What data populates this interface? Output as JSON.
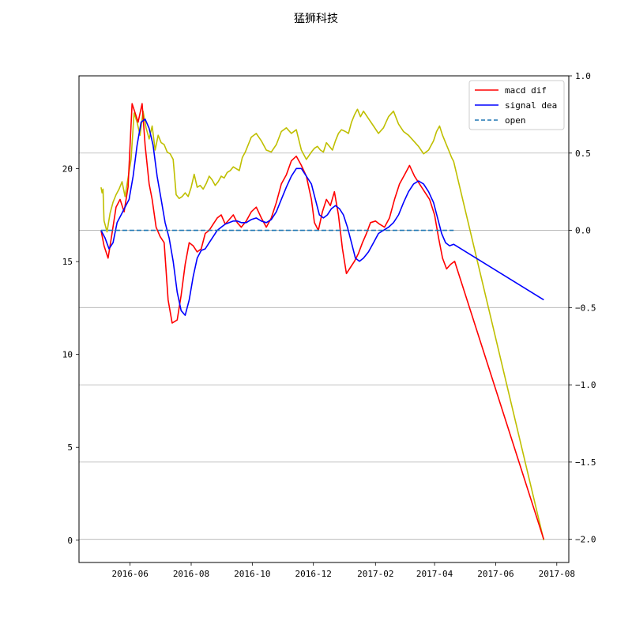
{
  "chart_data": {
    "type": "line",
    "title": "猛狮科技",
    "xlabel": "",
    "ylabel": "",
    "x_range": [
      "2016-04-11",
      "2017-08-13"
    ],
    "x_ticks": [
      {
        "date": "2016-06-01",
        "label": "2016-06"
      },
      {
        "date": "2016-08-01",
        "label": "2016-08"
      },
      {
        "date": "2016-10-01",
        "label": "2016-10"
      },
      {
        "date": "2016-12-01",
        "label": "2016-12"
      },
      {
        "date": "2017-02-01",
        "label": "2017-02"
      },
      {
        "date": "2017-04-01",
        "label": "2017-04"
      },
      {
        "date": "2017-06-01",
        "label": "2017-06"
      },
      {
        "date": "2017-08-01",
        "label": "2017-08"
      }
    ],
    "y_left": {
      "lim": [
        -1.2,
        25.0
      ],
      "ticks": [
        0,
        5,
        10,
        15,
        20
      ],
      "tick_labels": [
        "0",
        "5",
        "10",
        "15",
        "20"
      ]
    },
    "y_right": {
      "lim": [
        -2.15,
        1.0
      ],
      "ticks": [
        1.0,
        0.5,
        0.0,
        -0.5,
        -1.0,
        -1.5,
        -2.0
      ],
      "tick_labels": [
        "1.0",
        "0.5",
        "0.0",
        "−0.5",
        "−1.0",
        "−1.5",
        "−2.0"
      ]
    },
    "grid": "horizontal lines on right-axis ticks",
    "legend": {
      "placement": "top-right"
    },
    "series": [
      {
        "name": "",
        "axis": "left",
        "color": "#bfbf00",
        "dash": "solid",
        "x": [
          "2016-05-03",
          "2016-05-04",
          "2016-05-05",
          "2016-05-06",
          "2016-05-09",
          "2016-05-12",
          "2016-05-15",
          "2016-05-18",
          "2016-05-21",
          "2016-05-24",
          "2016-05-27",
          "2016-05-30",
          "2016-06-02",
          "2016-06-05",
          "2016-06-08",
          "2016-06-11",
          "2016-06-14",
          "2016-06-17",
          "2016-06-20",
          "2016-06-23",
          "2016-06-26",
          "2016-06-29",
          "2016-07-02",
          "2016-07-05",
          "2016-07-08",
          "2016-07-11",
          "2016-07-14",
          "2016-07-17",
          "2016-07-20",
          "2016-07-23",
          "2016-07-26",
          "2016-07-29",
          "2016-08-01",
          "2016-08-04",
          "2016-08-07",
          "2016-08-10",
          "2016-08-13",
          "2016-08-16",
          "2016-08-19",
          "2016-08-22",
          "2016-08-25",
          "2016-08-28",
          "2016-08-31",
          "2016-09-03",
          "2016-09-06",
          "2016-09-09",
          "2016-09-12",
          "2016-09-15",
          "2016-09-18",
          "2016-09-21",
          "2016-09-24",
          "2016-09-27",
          "2016-09-30",
          "2016-10-05",
          "2016-10-10",
          "2016-10-15",
          "2016-10-20",
          "2016-10-25",
          "2016-10-30",
          "2016-11-04",
          "2016-11-09",
          "2016-11-14",
          "2016-11-19",
          "2016-11-24",
          "2016-11-29",
          "2016-12-02",
          "2016-12-05",
          "2016-12-08",
          "2016-12-11",
          "2016-12-14",
          "2016-12-17",
          "2016-12-20",
          "2016-12-23",
          "2016-12-26",
          "2016-12-29",
          "2017-01-02",
          "2017-01-05",
          "2017-01-08",
          "2017-01-11",
          "2017-01-14",
          "2017-01-17",
          "2017-01-20",
          "2017-01-25",
          "2017-01-30",
          "2017-02-04",
          "2017-02-09",
          "2017-02-14",
          "2017-02-19",
          "2017-02-24",
          "2017-03-01",
          "2017-03-06",
          "2017-03-11",
          "2017-03-16",
          "2017-03-21",
          "2017-03-26",
          "2017-03-31",
          "2017-04-03",
          "2017-04-06",
          "2017-04-09",
          "2017-04-12",
          "2017-04-15",
          "2017-04-18",
          "2017-04-20",
          "2017-07-19"
        ],
        "values": [
          19.0,
          18.7,
          18.9,
          17.2,
          16.6,
          17.6,
          18.2,
          18.6,
          18.9,
          19.3,
          18.5,
          19.5,
          20.5,
          23.0,
          22.5,
          21.8,
          23.1,
          22.2,
          21.6,
          22.3,
          21.0,
          21.8,
          21.4,
          21.3,
          20.9,
          20.8,
          20.5,
          18.6,
          18.4,
          18.5,
          18.7,
          18.5,
          19.0,
          19.7,
          19.0,
          19.1,
          18.9,
          19.2,
          19.6,
          19.4,
          19.1,
          19.3,
          19.6,
          19.5,
          19.8,
          19.9,
          20.1,
          20.0,
          19.9,
          20.6,
          20.9,
          21.3,
          21.7,
          21.9,
          21.5,
          21.0,
          20.9,
          21.3,
          22.0,
          22.2,
          21.9,
          22.1,
          21.0,
          20.5,
          20.9,
          21.1,
          21.2,
          21.0,
          20.9,
          21.4,
          21.2,
          21.0,
          21.5,
          21.9,
          22.1,
          22.0,
          21.9,
          22.5,
          22.9,
          23.2,
          22.8,
          23.1,
          22.7,
          22.3,
          21.9,
          22.2,
          22.8,
          23.1,
          22.4,
          22.0,
          21.8,
          21.5,
          21.2,
          20.8,
          21.0,
          21.5,
          22.0,
          22.3,
          21.8,
          21.4,
          21.0,
          20.6,
          20.4,
          0.0
        ]
      },
      {
        "name": "macd dif",
        "axis": "right",
        "color": "#ff0000",
        "dash": "solid",
        "x": [
          "2016-05-03",
          "2016-05-06",
          "2016-05-10",
          "2016-05-14",
          "2016-05-18",
          "2016-05-22",
          "2016-05-26",
          "2016-05-30",
          "2016-06-03",
          "2016-06-06",
          "2016-06-09",
          "2016-06-13",
          "2016-06-16",
          "2016-06-20",
          "2016-06-23",
          "2016-06-27",
          "2016-07-01",
          "2016-07-05",
          "2016-07-09",
          "2016-07-13",
          "2016-07-18",
          "2016-07-22",
          "2016-07-26",
          "2016-07-30",
          "2016-08-03",
          "2016-08-07",
          "2016-08-11",
          "2016-08-15",
          "2016-08-19",
          "2016-08-23",
          "2016-08-27",
          "2016-08-31",
          "2016-09-04",
          "2016-09-08",
          "2016-09-12",
          "2016-09-16",
          "2016-09-20",
          "2016-09-25",
          "2016-09-30",
          "2016-10-05",
          "2016-10-10",
          "2016-10-15",
          "2016-10-20",
          "2016-10-25",
          "2016-10-30",
          "2016-11-04",
          "2016-11-09",
          "2016-11-14",
          "2016-11-19",
          "2016-11-24",
          "2016-11-29",
          "2016-12-02",
          "2016-12-06",
          "2016-12-10",
          "2016-12-14",
          "2016-12-18",
          "2016-12-22",
          "2016-12-26",
          "2016-12-30",
          "2017-01-03",
          "2017-01-07",
          "2017-01-11",
          "2017-01-15",
          "2017-01-19",
          "2017-01-23",
          "2017-01-27",
          "2017-02-01",
          "2017-02-05",
          "2017-02-10",
          "2017-02-15",
          "2017-02-20",
          "2017-02-25",
          "2017-03-02",
          "2017-03-07",
          "2017-03-12",
          "2017-03-17",
          "2017-03-22",
          "2017-03-27",
          "2017-04-01",
          "2017-04-05",
          "2017-04-09",
          "2017-04-13",
          "2017-04-17",
          "2017-04-21",
          "2017-07-19"
        ],
        "values": [
          0.0,
          -0.1,
          -0.18,
          -0.02,
          0.15,
          0.2,
          0.12,
          0.28,
          0.82,
          0.76,
          0.7,
          0.82,
          0.55,
          0.3,
          0.2,
          0.02,
          -0.04,
          -0.08,
          -0.45,
          -0.6,
          -0.58,
          -0.42,
          -0.22,
          -0.08,
          -0.1,
          -0.14,
          -0.12,
          -0.02,
          0.0,
          0.04,
          0.08,
          0.1,
          0.04,
          0.07,
          0.1,
          0.05,
          0.02,
          0.06,
          0.12,
          0.15,
          0.08,
          0.02,
          0.08,
          0.18,
          0.3,
          0.36,
          0.45,
          0.48,
          0.42,
          0.35,
          0.2,
          0.05,
          0.0,
          0.12,
          0.2,
          0.16,
          0.25,
          0.1,
          -0.12,
          -0.28,
          -0.24,
          -0.2,
          -0.15,
          -0.08,
          -0.02,
          0.05,
          0.06,
          0.04,
          0.02,
          0.08,
          0.2,
          0.3,
          0.36,
          0.42,
          0.35,
          0.3,
          0.25,
          0.2,
          0.1,
          -0.05,
          -0.18,
          -0.25,
          -0.22,
          -0.2,
          -2.0
        ]
      },
      {
        "name": "signal dea",
        "axis": "right",
        "color": "#0000ff",
        "dash": "solid",
        "x": [
          "2016-05-03",
          "2016-05-07",
          "2016-05-11",
          "2016-05-15",
          "2016-05-19",
          "2016-05-23",
          "2016-05-27",
          "2016-05-31",
          "2016-06-04",
          "2016-06-08",
          "2016-06-12",
          "2016-06-16",
          "2016-06-20",
          "2016-06-24",
          "2016-06-28",
          "2016-07-02",
          "2016-07-06",
          "2016-07-10",
          "2016-07-14",
          "2016-07-18",
          "2016-07-22",
          "2016-07-26",
          "2016-07-30",
          "2016-08-03",
          "2016-08-07",
          "2016-08-11",
          "2016-08-15",
          "2016-08-19",
          "2016-08-23",
          "2016-08-27",
          "2016-08-31",
          "2016-09-04",
          "2016-09-08",
          "2016-09-12",
          "2016-09-16",
          "2016-09-20",
          "2016-09-25",
          "2016-09-30",
          "2016-10-05",
          "2016-10-10",
          "2016-10-15",
          "2016-10-20",
          "2016-10-25",
          "2016-10-30",
          "2016-11-04",
          "2016-11-09",
          "2016-11-14",
          "2016-11-19",
          "2016-11-24",
          "2016-11-29",
          "2016-12-03",
          "2016-12-07",
          "2016-12-11",
          "2016-12-15",
          "2016-12-19",
          "2016-12-23",
          "2016-12-27",
          "2016-12-31",
          "2017-01-04",
          "2017-01-08",
          "2017-01-12",
          "2017-01-16",
          "2017-01-20",
          "2017-01-25",
          "2017-01-30",
          "2017-02-04",
          "2017-02-09",
          "2017-02-14",
          "2017-02-19",
          "2017-02-24",
          "2017-03-01",
          "2017-03-06",
          "2017-03-11",
          "2017-03-16",
          "2017-03-21",
          "2017-03-26",
          "2017-03-31",
          "2017-04-04",
          "2017-04-08",
          "2017-04-12",
          "2017-04-16",
          "2017-04-20",
          "2017-07-19"
        ],
        "values": [
          0.0,
          -0.05,
          -0.12,
          -0.08,
          0.05,
          0.1,
          0.15,
          0.2,
          0.35,
          0.55,
          0.7,
          0.72,
          0.66,
          0.55,
          0.35,
          0.2,
          0.05,
          -0.05,
          -0.2,
          -0.4,
          -0.52,
          -0.55,
          -0.45,
          -0.3,
          -0.18,
          -0.13,
          -0.12,
          -0.08,
          -0.04,
          0.0,
          0.02,
          0.04,
          0.05,
          0.06,
          0.06,
          0.05,
          0.05,
          0.07,
          0.08,
          0.06,
          0.05,
          0.07,
          0.12,
          0.2,
          0.28,
          0.35,
          0.4,
          0.4,
          0.35,
          0.3,
          0.2,
          0.1,
          0.08,
          0.1,
          0.14,
          0.16,
          0.14,
          0.1,
          0.02,
          -0.08,
          -0.18,
          -0.2,
          -0.18,
          -0.14,
          -0.08,
          -0.02,
          0.0,
          0.02,
          0.05,
          0.1,
          0.18,
          0.25,
          0.3,
          0.32,
          0.3,
          0.25,
          0.18,
          0.08,
          -0.02,
          -0.08,
          -0.1,
          -0.09,
          -0.45
        ]
      },
      {
        "name": "open",
        "axis": "right",
        "color": "#1f77b4",
        "dash": "dashed",
        "x": [
          "2016-05-03",
          "2017-04-20"
        ],
        "values": [
          0.0,
          0.0
        ]
      }
    ]
  }
}
